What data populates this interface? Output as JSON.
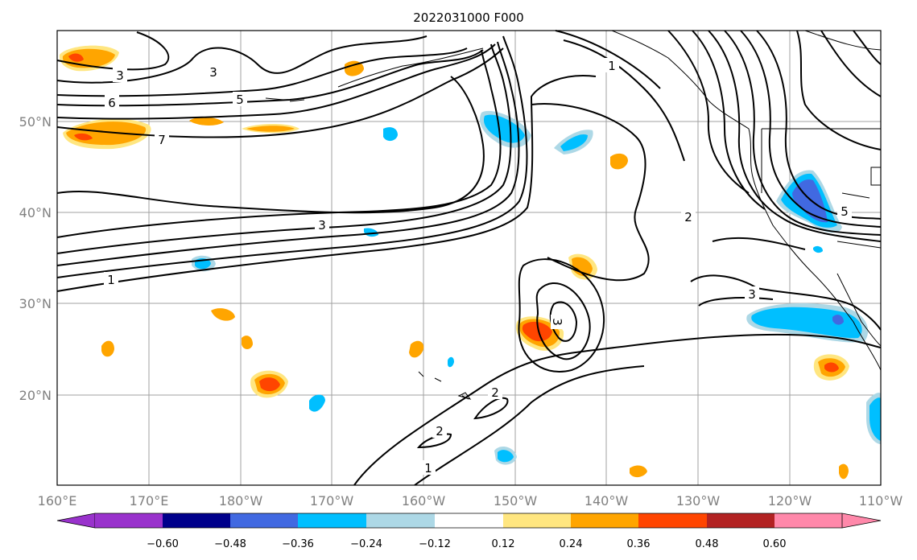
{
  "title": "2022031000 F000",
  "map": {
    "lon_ticks": [
      "160°E",
      "170°E",
      "180°W",
      "170°W",
      "160°W",
      "150°W",
      "140°W",
      "130°W",
      "120°W",
      "110°W"
    ],
    "lat_ticks": [
      "50°N",
      "40°N",
      "30°N",
      "20°N"
    ],
    "contour_labels": [
      "3",
      "3",
      "6",
      "5",
      "7",
      "1",
      "3",
      "1",
      "2",
      "5",
      "3",
      "3",
      "2",
      "2",
      "1"
    ]
  },
  "colorbar": {
    "ticks": [
      "−0.60",
      "−0.48",
      "−0.36",
      "−0.24",
      "−0.12",
      "0.12",
      "0.24",
      "0.36",
      "0.48",
      "0.60"
    ],
    "colors": [
      "#9932cc",
      "#00008b",
      "#4169e1",
      "#00bfff",
      "#add8e6",
      "#ffffff",
      "#ffe680",
      "#ffa500",
      "#ff4500",
      "#b22222",
      "#ff88aa"
    ]
  },
  "colors": {
    "shade_pos1": "#ffe680",
    "shade_pos2": "#ffa500",
    "shade_pos3": "#ff4500",
    "shade_neg1": "#add8e6",
    "shade_neg2": "#00bfff",
    "shade_neg3": "#4169e1"
  }
}
